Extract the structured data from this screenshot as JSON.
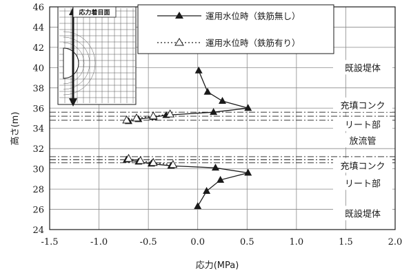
{
  "chart_data": {
    "type": "line",
    "xlabel": "応力(MPa)",
    "ylabel": "高さ(m)",
    "xlim": [
      -1.5,
      2.0
    ],
    "ylim": [
      24,
      46
    ],
    "x_ticks": [
      "-1.5",
      "-1.0",
      "-0.5",
      "0.0",
      "0.5",
      "1.0",
      "1.5",
      "2.0"
    ],
    "y_ticks": [
      "24",
      "26",
      "28",
      "30",
      "32",
      "34",
      "36",
      "38",
      "40",
      "42",
      "44",
      "46"
    ],
    "grid": true,
    "legend_position": "top",
    "series": [
      {
        "name": "運用水位時（鉄筋無し）",
        "marker": "filled-triangle",
        "line_style": "solid",
        "color": "#1a1a1a",
        "segments": [
          [
            {
              "x": 0.01,
              "y": 39.7
            },
            {
              "x": 0.1,
              "y": 37.6
            },
            {
              "x": 0.25,
              "y": 36.7
            },
            {
              "x": 0.51,
              "y": 36.0
            },
            {
              "x": 0.16,
              "y": 35.6
            },
            {
              "x": -0.32,
              "y": 35.3
            },
            {
              "x": -0.45,
              "y": 35.1
            },
            {
              "x": -0.6,
              "y": 34.9
            },
            {
              "x": -0.7,
              "y": 34.7
            }
          ],
          [
            {
              "x": -0.72,
              "y": 30.9
            },
            {
              "x": -0.6,
              "y": 30.7
            },
            {
              "x": -0.47,
              "y": 30.5
            },
            {
              "x": -0.27,
              "y": 30.3
            },
            {
              "x": 0.18,
              "y": 30.1
            },
            {
              "x": 0.51,
              "y": 29.6
            },
            {
              "x": 0.23,
              "y": 28.9
            },
            {
              "x": 0.09,
              "y": 27.8
            },
            {
              "x": 0.0,
              "y": 26.3
            }
          ]
        ]
      },
      {
        "name": "運用水位時（鉄筋有り）",
        "marker": "open-triangle",
        "line_style": "dotted",
        "color": "#1a1a1a",
        "segments": [
          [
            {
              "x": -0.28,
              "y": 35.4
            },
            {
              "x": -0.45,
              "y": 35.2
            },
            {
              "x": -0.62,
              "y": 35.0
            },
            {
              "x": -0.72,
              "y": 34.8
            }
          ],
          [
            {
              "x": -0.7,
              "y": 31.0
            },
            {
              "x": -0.58,
              "y": 30.8
            },
            {
              "x": -0.45,
              "y": 30.6
            },
            {
              "x": -0.25,
              "y": 30.4
            }
          ]
        ]
      }
    ],
    "boundary_lines": [
      35.6,
      35.2,
      34.8,
      31.2,
      30.9,
      30.6
    ],
    "region_labels": [
      {
        "text": "既設堤体",
        "y": 40
      },
      {
        "text": "充填コンク",
        "y": 36.3
      },
      {
        "text": "リート部",
        "y": 34.4
      },
      {
        "text": "放流管",
        "y": 32.8
      },
      {
        "text": "充填コンク",
        "y": 30.3
      },
      {
        "text": "リート部",
        "y": 28.6
      },
      {
        "text": "既設堤体",
        "y": 25.6
      }
    ],
    "inset": {
      "title": "応力着目面"
    }
  }
}
